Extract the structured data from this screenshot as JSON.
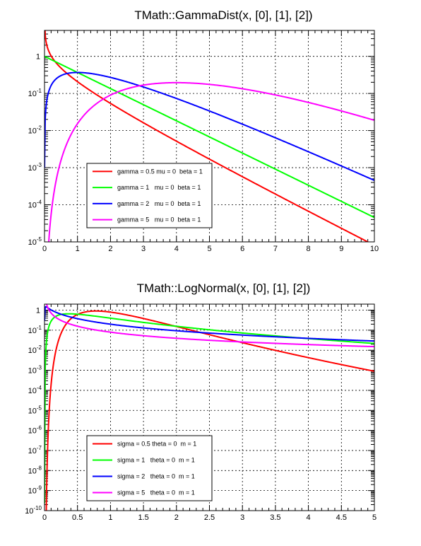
{
  "chart_data": [
    {
      "type": "line",
      "title": "TMath::GammaDist(x, [0], [1], [2])",
      "xlabel": "",
      "ylabel": "",
      "xlim": [
        0,
        10
      ],
      "ylim": [
        1e-05,
        5
      ],
      "yscale": "log",
      "grid": true,
      "legend_position": "bottom-left",
      "x_ticks": [
        "0",
        "1",
        "2",
        "3",
        "4",
        "5",
        "6",
        "7",
        "8",
        "9",
        "10"
      ],
      "y_ticks": [
        {
          "base": "10",
          "exp": "-5",
          "value": 1e-05
        },
        {
          "base": "10",
          "exp": "-4",
          "value": 0.0001
        },
        {
          "base": "10",
          "exp": "-3",
          "value": 0.001
        },
        {
          "base": "10",
          "exp": "-2",
          "value": 0.01
        },
        {
          "base": "10",
          "exp": "-1",
          "value": 0.1
        },
        {
          "base": "1",
          "exp": "",
          "value": 1
        }
      ],
      "series": [
        {
          "name": "gamma = 0.5 mu = 0  beta = 1",
          "color": "#ff0000",
          "family": "gamma",
          "p": 0.5
        },
        {
          "name": "gamma = 1   mu = 0  beta = 1",
          "color": "#00ff00",
          "family": "gamma",
          "p": 1
        },
        {
          "name": "gamma = 2   mu = 0  beta = 1",
          "color": "#0000ff",
          "family": "gamma",
          "p": 2
        },
        {
          "name": "gamma = 5   mu = 0  beta = 1",
          "color": "#ff00ff",
          "family": "gamma",
          "p": 5
        }
      ]
    },
    {
      "type": "line",
      "title": "TMath::LogNormal(x, [0], [1], [2])",
      "xlabel": "",
      "ylabel": "",
      "xlim": [
        0,
        5
      ],
      "ylim": [
        1e-10,
        2
      ],
      "yscale": "log",
      "grid": true,
      "legend_position": "bottom-left",
      "x_ticks": [
        "0",
        "0.5",
        "1",
        "1.5",
        "2",
        "2.5",
        "3",
        "3.5",
        "4",
        "4.5",
        "5"
      ],
      "y_ticks": [
        {
          "base": "10",
          "exp": "-10",
          "value": 1e-10
        },
        {
          "base": "10",
          "exp": "-9",
          "value": 1e-09
        },
        {
          "base": "10",
          "exp": "-8",
          "value": 1e-08
        },
        {
          "base": "10",
          "exp": "-7",
          "value": 1e-07
        },
        {
          "base": "10",
          "exp": "-6",
          "value": 1e-06
        },
        {
          "base": "10",
          "exp": "-5",
          "value": 1e-05
        },
        {
          "base": "10",
          "exp": "-4",
          "value": 0.0001
        },
        {
          "base": "10",
          "exp": "-3",
          "value": 0.001
        },
        {
          "base": "10",
          "exp": "-2",
          "value": 0.01
        },
        {
          "base": "10",
          "exp": "-1",
          "value": 0.1
        },
        {
          "base": "1",
          "exp": "",
          "value": 1
        }
      ],
      "series": [
        {
          "name": "sigma = 0.5 theta = 0  m = 1",
          "color": "#ff0000",
          "family": "lognormal",
          "p": 0.5
        },
        {
          "name": "sigma = 1   theta = 0  m = 1",
          "color": "#00ff00",
          "family": "lognormal",
          "p": 1
        },
        {
          "name": "sigma = 2   theta = 0  m = 1",
          "color": "#0000ff",
          "family": "lognormal",
          "p": 2
        },
        {
          "name": "sigma = 5   theta = 0  m = 1",
          "color": "#ff00ff",
          "family": "lognormal",
          "p": 5
        }
      ]
    }
  ]
}
